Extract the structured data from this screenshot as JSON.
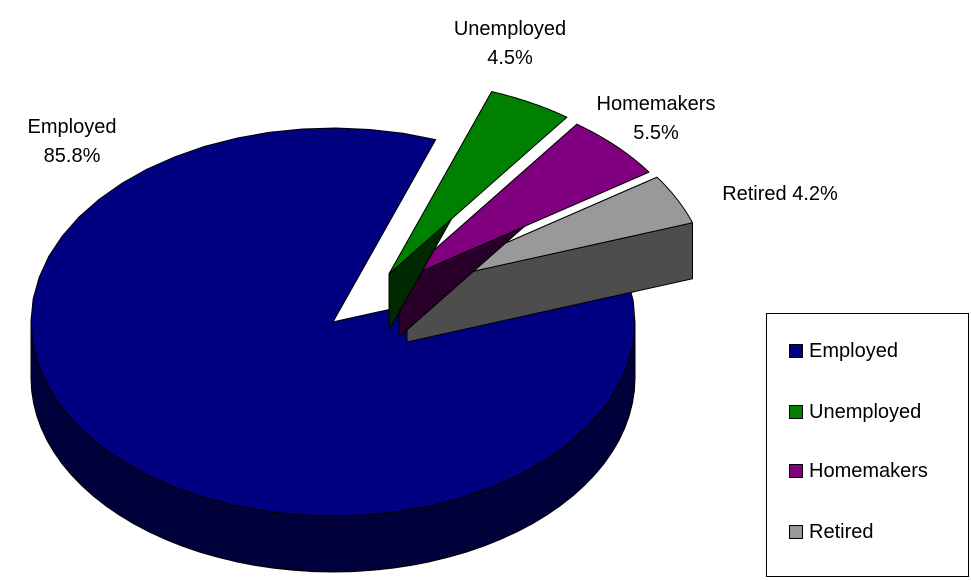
{
  "chart_data": {
    "type": "pie",
    "style": "3d-exploded",
    "categories": [
      "Employed",
      "Unemployed",
      "Homemakers",
      "Retired"
    ],
    "values": [
      85.8,
      4.5,
      5.5,
      4.2
    ],
    "units": "%",
    "colors": [
      "#000080",
      "#008000",
      "#800080",
      "#999999"
    ],
    "data_labels": [
      {
        "category": "Employed",
        "name": "Employed",
        "value": "85.8%"
      },
      {
        "category": "Unemployed",
        "name": "Unemployed",
        "value": "4.5%"
      },
      {
        "category": "Homemakers",
        "name": "Homemakers",
        "value": "5.5%"
      },
      {
        "category": "Retired",
        "text": "Retired 4.2%"
      }
    ],
    "legend": {
      "placement": "right",
      "entries": [
        "Employed",
        "Unemployed",
        "Homemakers",
        "Retired"
      ]
    }
  }
}
